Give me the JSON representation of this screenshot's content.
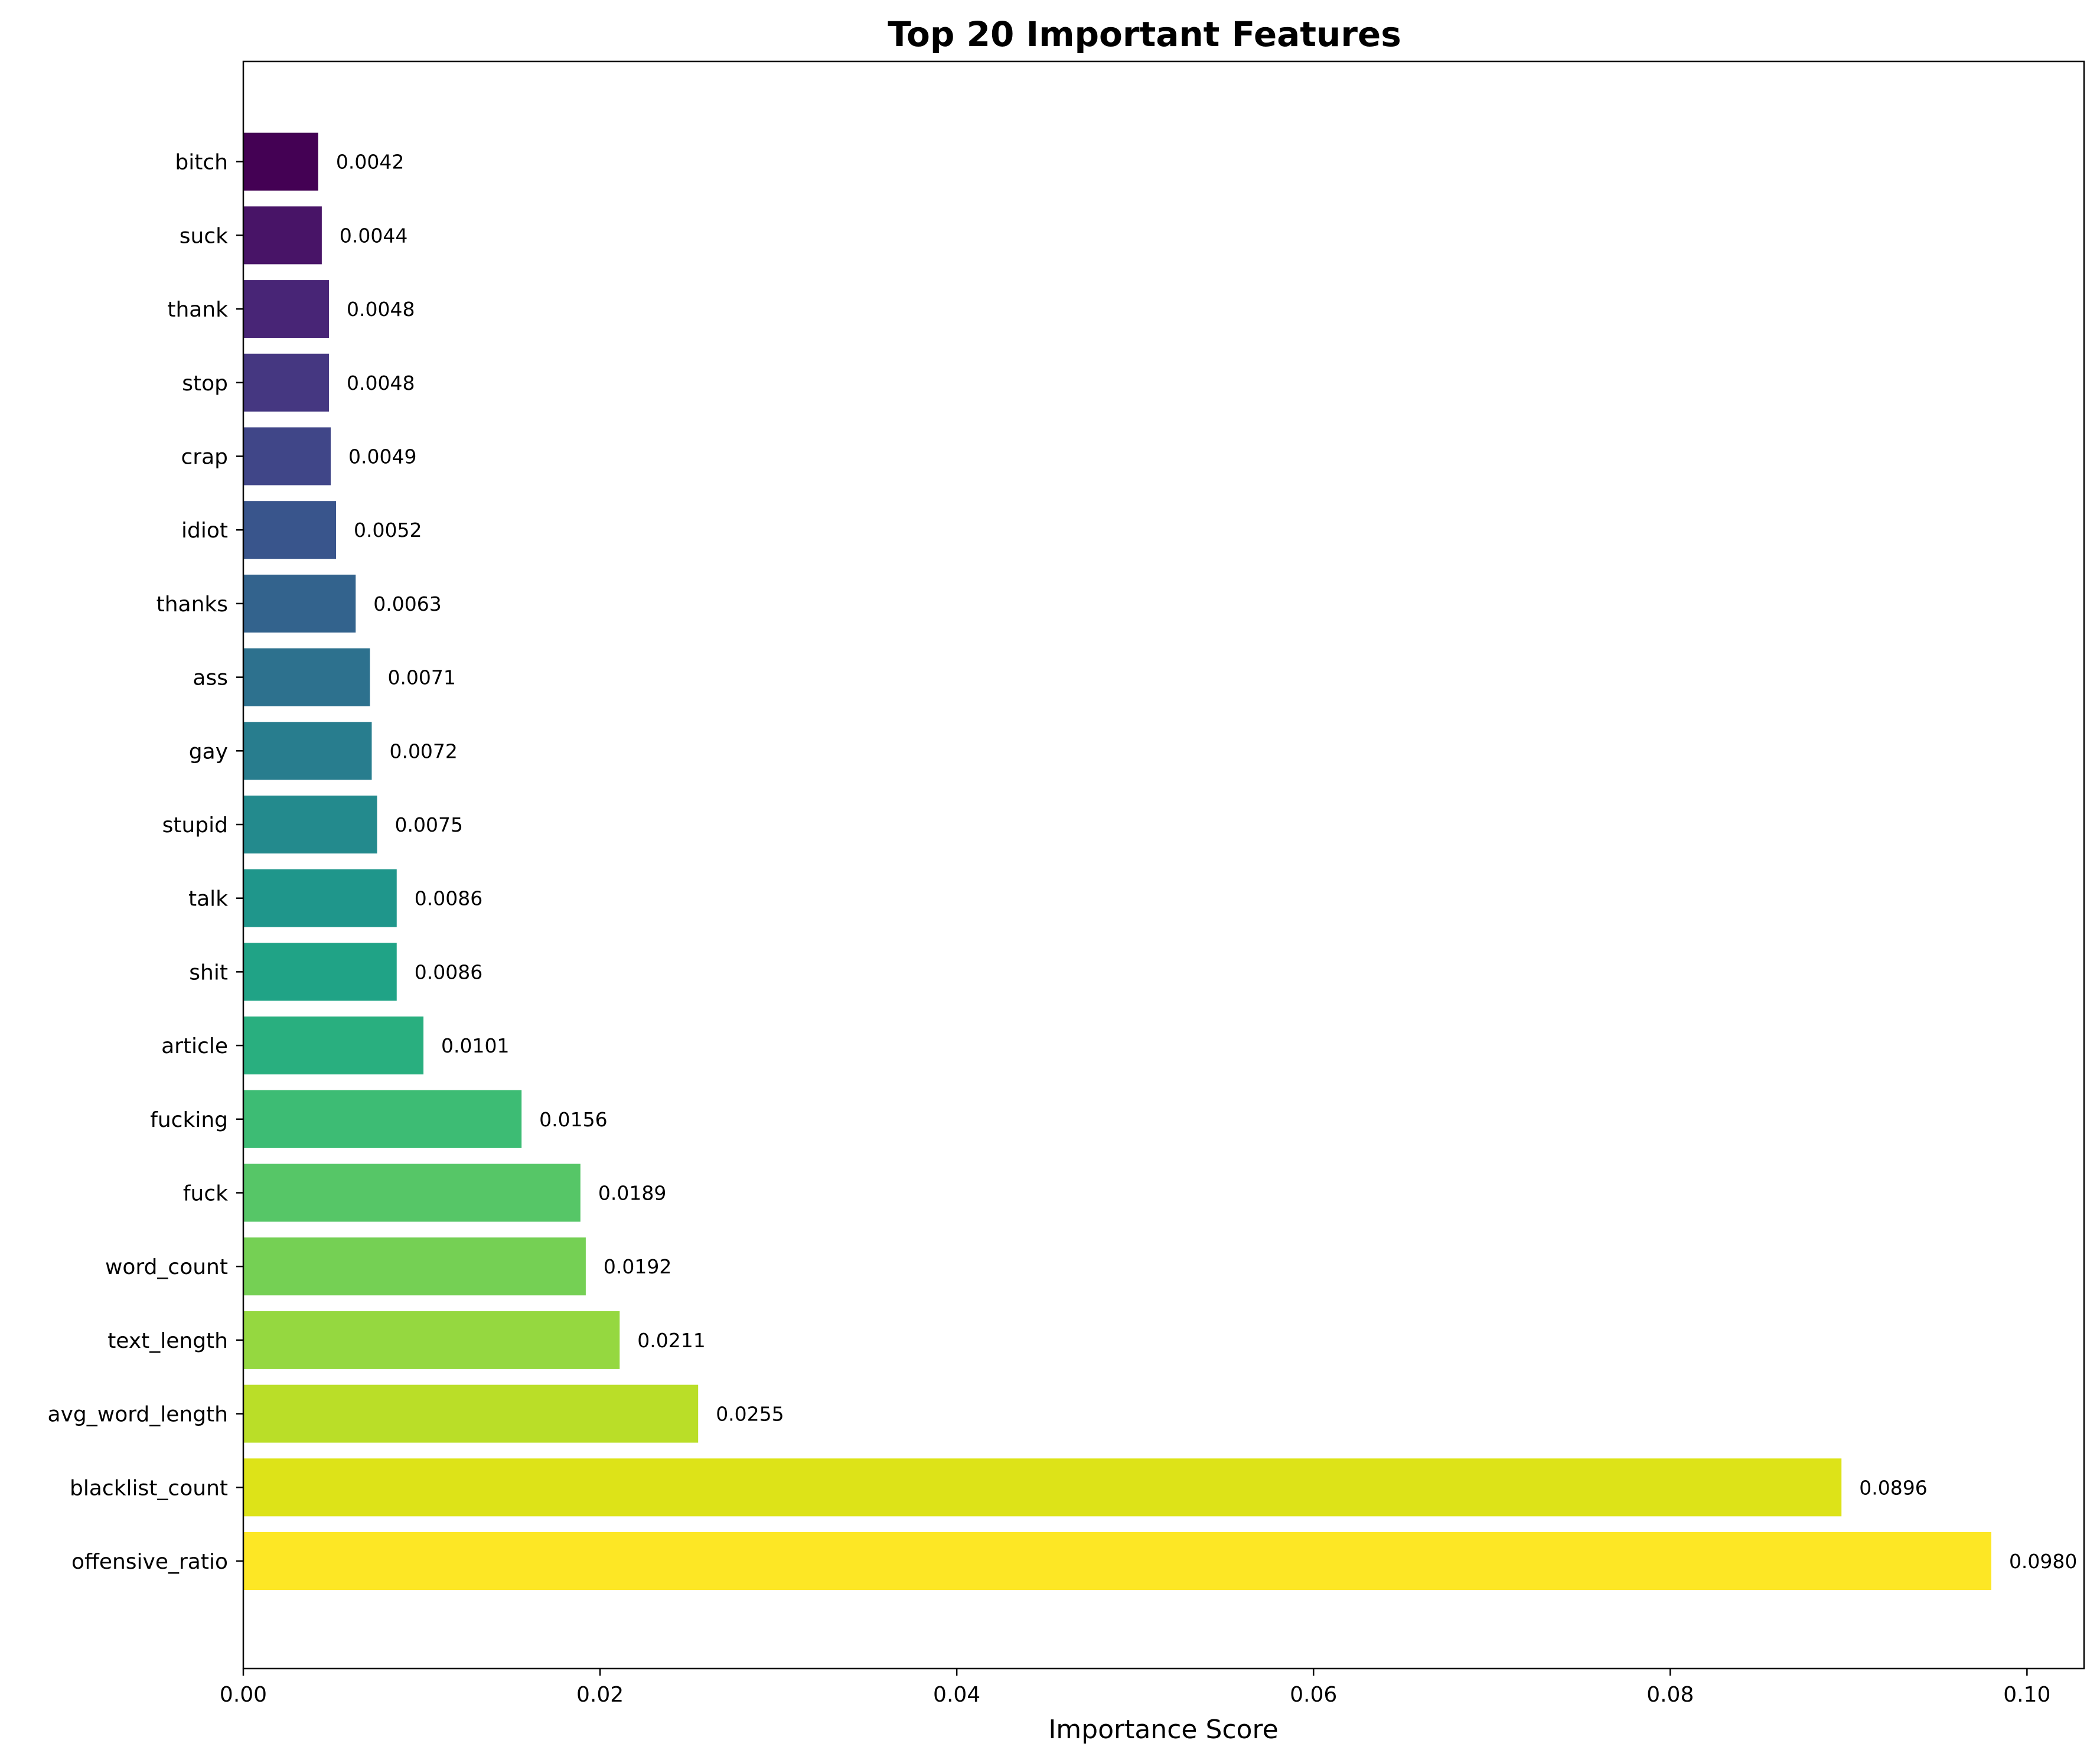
{
  "chart_data": {
    "type": "bar",
    "orientation": "horizontal",
    "title": "Top 20 Important Features",
    "xlabel": "Importance Score",
    "ylabel": "",
    "xlim": [
      0,
      0.1032
    ],
    "x_ticks": [
      0.0,
      0.02,
      0.04,
      0.06,
      0.08,
      0.1
    ],
    "x_tick_labels": [
      "0.00",
      "0.02",
      "0.04",
      "0.06",
      "0.08",
      "0.10"
    ],
    "grid": false,
    "legend": "none",
    "colormap": "viridis",
    "categories": [
      "offensive_ratio",
      "blacklist_count",
      "avg_word_length",
      "text_length",
      "word_count",
      "fuck",
      "fucking",
      "article",
      "shit",
      "talk",
      "stupid",
      "gay",
      "ass",
      "thanks",
      "idiot",
      "crap",
      "stop",
      "thank",
      "suck",
      "bitch"
    ],
    "values": [
      0.098,
      0.0896,
      0.0255,
      0.0211,
      0.0192,
      0.0189,
      0.0156,
      0.0101,
      0.0086,
      0.0086,
      0.0075,
      0.0072,
      0.0071,
      0.0063,
      0.0052,
      0.0049,
      0.0048,
      0.0048,
      0.0044,
      0.0042
    ],
    "value_labels": [
      "0.0980",
      "0.0896",
      "0.0255",
      "0.0211",
      "0.0192",
      "0.0189",
      "0.0156",
      "0.0101",
      "0.0086",
      "0.0086",
      "0.0075",
      "0.0072",
      "0.0071",
      "0.0063",
      "0.0052",
      "0.0049",
      "0.0048",
      "0.0048",
      "0.0044",
      "0.0042"
    ],
    "colors": [
      "#fde725",
      "#dde318",
      "#bade28",
      "#95d840",
      "#75d054",
      "#56c667",
      "#3dbc74",
      "#29af7f",
      "#20a386",
      "#1f968b",
      "#238a8d",
      "#287d8e",
      "#2d718e",
      "#33638d",
      "#39558c",
      "#404688",
      "#453781",
      "#482576",
      "#481467",
      "#440154"
    ]
  }
}
